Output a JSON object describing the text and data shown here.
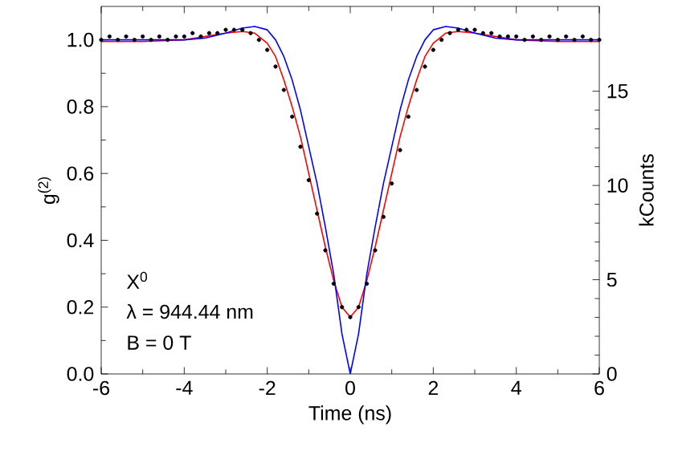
{
  "chart_data": {
    "type": "scatter",
    "xlabel": "Time (ns)",
    "ylabel": "g$^{(2)}$",
    "y2label": "kCounts",
    "xlim": [
      -6,
      6
    ],
    "xticks": [
      -6,
      -4,
      -2,
      0,
      2,
      4,
      6
    ],
    "ylim": [
      0,
      1.1
    ],
    "yticks": [
      {
        "value": 0,
        "label": "0.0"
      },
      {
        "value": 0.2,
        "label": "0.2"
      },
      {
        "value": 0.4,
        "label": "0.4"
      },
      {
        "value": 0.6,
        "label": "0.6"
      },
      {
        "value": 0.8,
        "label": "0.8"
      },
      {
        "value": 1.0,
        "label": "1.0"
      }
    ],
    "y2lim": [
      0,
      19.5
    ],
    "y2ticks": [
      0,
      5,
      10,
      15
    ],
    "grid": false,
    "annotations": [
      "X$^{0}$",
      "λ = 944.44 nm",
      "B = 0 T"
    ],
    "series": [
      {
        "color": "#000000",
        "marker": "circle",
        "x": [
          -6.0,
          -5.8,
          -5.6,
          -5.4,
          -5.2,
          -5.0,
          -4.8,
          -4.6,
          -4.4,
          -4.2,
          -4.0,
          -3.8,
          -3.6,
          -3.4,
          -3.2,
          -3.0,
          -2.8,
          -2.6,
          -2.4,
          -2.2,
          -2.0,
          -1.8,
          -1.6,
          -1.4,
          -1.2,
          -1.0,
          -0.8,
          -0.6,
          -0.4,
          -0.2,
          0.0,
          0.2,
          0.4,
          0.6,
          0.8,
          1.0,
          1.2,
          1.4,
          1.6,
          1.8,
          2.0,
          2.2,
          2.4,
          2.6,
          2.8,
          3.0,
          3.2,
          3.4,
          3.6,
          3.8,
          4.0,
          4.2,
          4.4,
          4.6,
          4.8,
          5.0,
          5.2,
          5.4,
          5.6,
          5.8,
          6.0
        ],
        "values": [
          1.0,
          1.01,
          1.0,
          1.01,
          1.0,
          1.01,
          1.0,
          1.01,
          1.0,
          1.01,
          1.01,
          1.02,
          1.01,
          1.02,
          1.02,
          1.03,
          1.03,
          1.03,
          1.02,
          1.0,
          0.97,
          0.92,
          0.85,
          0.77,
          0.68,
          0.58,
          0.48,
          0.37,
          0.27,
          0.2,
          0.17,
          0.2,
          0.27,
          0.37,
          0.47,
          0.57,
          0.67,
          0.77,
          0.85,
          0.92,
          0.97,
          1.0,
          1.02,
          1.03,
          1.03,
          1.03,
          1.02,
          1.02,
          1.01,
          1.01,
          1.01,
          1.0,
          1.01,
          1.0,
          1.01,
          1.0,
          1.01,
          1.0,
          1.01,
          1.0,
          1.0
        ]
      },
      {
        "type": "line",
        "color": "#ff0000",
        "marker": "none",
        "line_style": "solid",
        "x": [
          -6,
          -5,
          -4,
          -3.5,
          -3,
          -2.6,
          -2.3,
          -2.0,
          -1.8,
          -1.6,
          -1.4,
          -1.2,
          -1.0,
          -0.8,
          -0.6,
          -0.4,
          -0.2,
          0,
          0.2,
          0.4,
          0.6,
          0.8,
          1.0,
          1.2,
          1.4,
          1.6,
          1.8,
          2.0,
          2.3,
          2.6,
          3,
          3.5,
          4,
          5,
          6
        ],
        "values": [
          0.995,
          0.995,
          1.0,
          1.01,
          1.02,
          1.025,
          1.02,
          0.99,
          0.95,
          0.88,
          0.8,
          0.71,
          0.6,
          0.49,
          0.38,
          0.28,
          0.2,
          0.17,
          0.2,
          0.28,
          0.38,
          0.49,
          0.6,
          0.71,
          0.8,
          0.88,
          0.95,
          0.99,
          1.02,
          1.025,
          1.02,
          1.01,
          1.0,
          0.995,
          0.995
        ]
      },
      {
        "type": "line",
        "color": "#0000ff",
        "marker": "none",
        "line_style": "solid",
        "x": [
          -6,
          -4,
          -3.5,
          -3,
          -2.6,
          -2.3,
          -2.0,
          -1.8,
          -1.6,
          -1.4,
          -1.2,
          -1.0,
          -0.8,
          -0.6,
          -0.4,
          -0.2,
          0,
          0.2,
          0.4,
          0.6,
          0.8,
          1.0,
          1.2,
          1.4,
          1.6,
          1.8,
          2.0,
          2.3,
          2.6,
          3,
          3.5,
          4,
          6
        ],
        "values": [
          1.0,
          1.0,
          1.005,
          1.02,
          1.035,
          1.04,
          1.03,
          1.0,
          0.95,
          0.88,
          0.79,
          0.68,
          0.57,
          0.44,
          0.3,
          0.12,
          0.0,
          0.12,
          0.3,
          0.44,
          0.57,
          0.68,
          0.79,
          0.88,
          0.95,
          1.0,
          1.03,
          1.04,
          1.035,
          1.02,
          1.005,
          1.0,
          1.0
        ]
      }
    ]
  }
}
